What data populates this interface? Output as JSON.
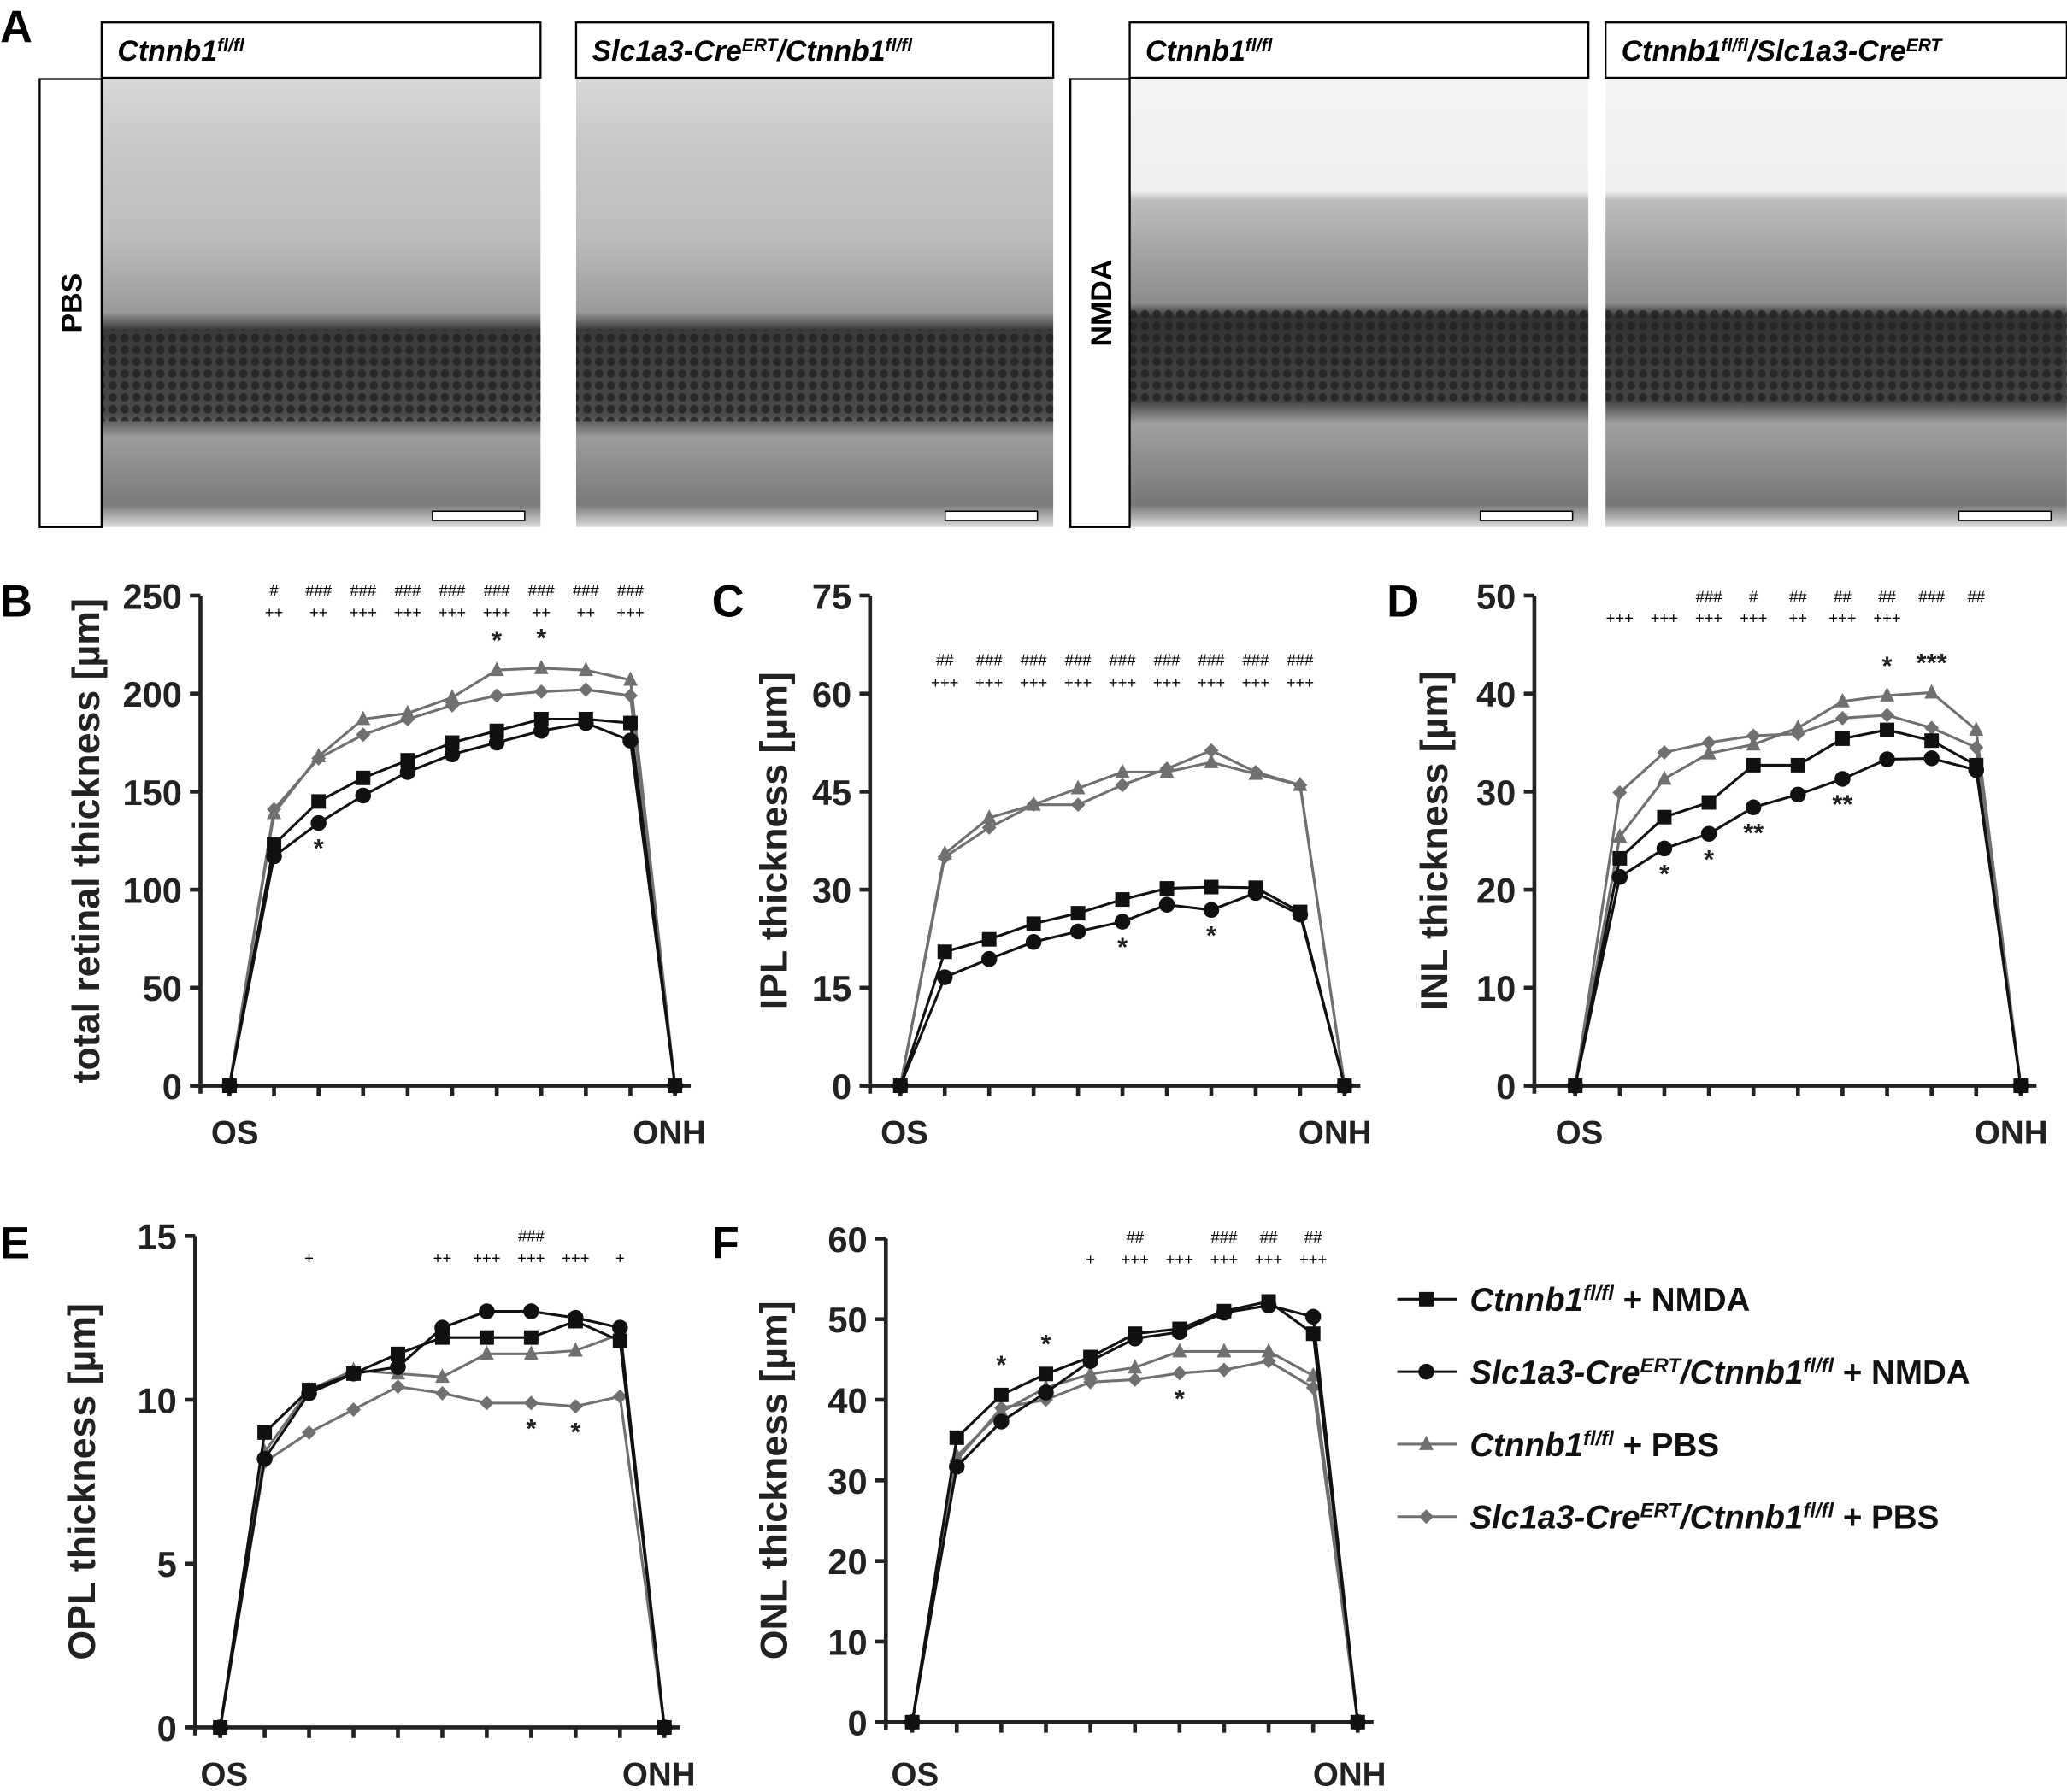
{
  "panel_letters": [
    "A",
    "B",
    "C",
    "D",
    "E",
    "F"
  ],
  "micrographs": {
    "headers": [
      [
        {
          "t": "Ctnnb1"
        },
        {
          "sup": "fl/fl"
        }
      ],
      [
        {
          "t": "Slc1a3-Cre"
        },
        {
          "sup": "ERT"
        },
        {
          "t": "/Ctnnb1"
        },
        {
          "sup": "fl/fl"
        }
      ],
      [
        {
          "t": "Ctnnb1"
        },
        {
          "sup": "fl/fl"
        }
      ],
      [
        {
          "t": "Ctnnb1"
        },
        {
          "sup": "fl/fl"
        },
        {
          "t": "/Slc1a3-Cre"
        },
        {
          "sup": "ERT"
        }
      ]
    ],
    "row_labels": [
      "PBS",
      "NMDA"
    ]
  },
  "legend": [
    {
      "marker": "square",
      "color": "#111111",
      "label": [
        {
          "t": "Ctnnb1"
        },
        {
          "sup": "fl/fl"
        },
        {
          "t": " + NMDA",
          "plain": true
        }
      ]
    },
    {
      "marker": "circle",
      "color": "#111111",
      "label": [
        {
          "t": "Slc1a3-Cre"
        },
        {
          "sup": "ERT"
        },
        {
          "t": "/Ctnnb1"
        },
        {
          "sup": "fl/fl"
        },
        {
          "t": " + NMDA",
          "plain": true
        }
      ]
    },
    {
      "marker": "triangle",
      "color": "#707070",
      "label": [
        {
          "t": "Ctnnb1"
        },
        {
          "sup": "fl/fl"
        },
        {
          "t": " + PBS",
          "plain": true
        }
      ]
    },
    {
      "marker": "diamond",
      "color": "#707070",
      "label": [
        {
          "t": "Slc1a3-Cre"
        },
        {
          "sup": "ERT"
        },
        {
          "t": "/Ctnnb1"
        },
        {
          "sup": "fl/fl"
        },
        {
          "t": " + PBS",
          "plain": true
        }
      ]
    }
  ],
  "chart_data": [
    {
      "id": "B",
      "type": "line",
      "ylabel": "total retinal thickness [µm]",
      "ylim": [
        0,
        250
      ],
      "yticks": [
        0,
        50,
        100,
        150,
        200,
        250
      ],
      "x": [
        0,
        1,
        2,
        3,
        4,
        5,
        6,
        7,
        8,
        9,
        10
      ],
      "xticklabels": {
        "0": "OS",
        "10": "ONH"
      },
      "series": [
        {
          "marker": "square",
          "color": "#111111",
          "values": [
            0,
            123,
            145,
            157,
            166,
            175,
            181,
            187,
            187,
            185,
            0
          ]
        },
        {
          "marker": "circle",
          "color": "#111111",
          "values": [
            0,
            117,
            134,
            148,
            160,
            169,
            175,
            181,
            185,
            176,
            0
          ]
        },
        {
          "marker": "triangle",
          "color": "#707070",
          "values": [
            0,
            139,
            168,
            187,
            190,
            198,
            212,
            213,
            212,
            207,
            0
          ]
        },
        {
          "marker": "diamond",
          "color": "#707070",
          "values": [
            0,
            141,
            167,
            179,
            187,
            194,
            199,
            201,
            202,
            199,
            0
          ]
        }
      ],
      "sig_rows": [
        [
          "#",
          "###",
          "###",
          "###",
          "###",
          "###",
          "###",
          "###",
          "###"
        ],
        [
          "++",
          "++",
          "+++",
          "+++",
          "+++",
          "+++",
          "++",
          "++",
          "+++"
        ]
      ],
      "stars": [
        {
          "x": 2,
          "text": "*",
          "series": 1,
          "pos": "below",
          "color": "#111111"
        },
        {
          "x": 6,
          "text": "*",
          "series": 2,
          "pos": "above",
          "color": "#707070"
        },
        {
          "x": 7,
          "text": "*",
          "series": 2,
          "pos": "above",
          "color": "#707070"
        }
      ]
    },
    {
      "id": "C",
      "type": "line",
      "ylabel": "IPL thickness [µm]",
      "ylim": [
        0,
        75
      ],
      "yticks": [
        0,
        15,
        30,
        45,
        60,
        75
      ],
      "x": [
        0,
        1,
        2,
        3,
        4,
        5,
        6,
        7,
        8,
        9,
        10
      ],
      "xticklabels": {
        "0": "OS",
        "10": "ONH"
      },
      "series": [
        {
          "marker": "square",
          "color": "#111111",
          "values": [
            0,
            20.5,
            22.4,
            24.8,
            26.4,
            28.5,
            30.2,
            30.4,
            30.3,
            26.6,
            0
          ]
        },
        {
          "marker": "circle",
          "color": "#111111",
          "values": [
            0,
            16.6,
            19.4,
            22,
            23.6,
            25.1,
            27.7,
            26.9,
            29.5,
            26.2,
            0
          ]
        },
        {
          "marker": "triangle",
          "color": "#707070",
          "values": [
            0,
            35.5,
            41,
            43,
            45.5,
            48,
            48,
            49.5,
            47.7,
            46,
            0
          ]
        },
        {
          "marker": "diamond",
          "color": "#707070",
          "values": [
            0,
            35,
            39.5,
            43,
            43,
            46,
            48.5,
            51.3,
            48,
            46,
            0
          ]
        }
      ],
      "sig_rows": [
        [
          "##",
          "###",
          "###",
          "###",
          "###",
          "###",
          "###",
          "###",
          "###"
        ],
        [
          "+++",
          "+++",
          "+++",
          "+++",
          "+++",
          "+++",
          "+++",
          "+++",
          "+++"
        ]
      ],
      "stars": [
        {
          "x": 5,
          "text": "*",
          "series": 1,
          "pos": "below",
          "color": "#111111"
        },
        {
          "x": 7,
          "text": "*",
          "series": 1,
          "pos": "below",
          "color": "#111111"
        }
      ]
    },
    {
      "id": "D",
      "type": "line",
      "ylabel": "INL thickness [µm]",
      "ylim": [
        0,
        50
      ],
      "yticks": [
        0,
        10,
        20,
        30,
        40,
        50
      ],
      "x": [
        0,
        1,
        2,
        3,
        4,
        5,
        6,
        7,
        8,
        9,
        10
      ],
      "xticklabels": {
        "0": "OS",
        "10": "ONH"
      },
      "series": [
        {
          "marker": "square",
          "color": "#111111",
          "values": [
            0,
            23.2,
            27.4,
            28.9,
            32.7,
            32.7,
            35.4,
            36.3,
            35.2,
            32.7,
            0
          ]
        },
        {
          "marker": "circle",
          "color": "#111111",
          "values": [
            0,
            21.3,
            24.2,
            25.7,
            28.4,
            29.7,
            31.3,
            33.3,
            33.4,
            32.2,
            0
          ]
        },
        {
          "marker": "triangle",
          "color": "#707070",
          "values": [
            0,
            25.4,
            31.3,
            33.9,
            34.8,
            36.5,
            39.2,
            39.8,
            40.1,
            36.3,
            0
          ]
        },
        {
          "marker": "diamond",
          "color": "#707070",
          "values": [
            0,
            29.9,
            34,
            35,
            35.7,
            35.9,
            37.5,
            37.8,
            36.5,
            34.5,
            0
          ]
        }
      ],
      "sig_rows": [
        [
          "",
          "",
          "###",
          "#",
          "##",
          "##",
          "##",
          "###",
          "##"
        ],
        [
          "+++",
          "+++",
          "+++",
          "+++",
          "++",
          "+++",
          "+++",
          "",
          ""
        ]
      ],
      "stars": [
        {
          "x": 2,
          "text": "*",
          "series": 1,
          "pos": "below",
          "color": "#111111"
        },
        {
          "x": 3,
          "text": "*",
          "series": 1,
          "pos": "below",
          "color": "#111111"
        },
        {
          "x": 4,
          "text": "**",
          "series": 1,
          "pos": "below",
          "color": "#111111"
        },
        {
          "x": 6,
          "text": "**",
          "series": 1,
          "pos": "below",
          "color": "#111111"
        },
        {
          "x": 7,
          "text": "*",
          "series": 2,
          "pos": "above",
          "color": "#707070"
        },
        {
          "x": 8,
          "text": "***",
          "series": 2,
          "pos": "above",
          "color": "#707070"
        }
      ]
    },
    {
      "id": "E",
      "type": "line",
      "ylabel": "OPL thickness [µm]",
      "ylim": [
        0,
        15
      ],
      "yticks": [
        0,
        5,
        10,
        15
      ],
      "x": [
        0,
        1,
        2,
        3,
        4,
        5,
        6,
        7,
        8,
        9,
        10
      ],
      "xticklabels": {
        "0": "OS",
        "10": "ONH"
      },
      "series": [
        {
          "marker": "square",
          "color": "#111111",
          "values": [
            0,
            9.0,
            10.3,
            10.8,
            11.4,
            11.9,
            11.9,
            11.9,
            12.4,
            11.8,
            0
          ]
        },
        {
          "marker": "circle",
          "color": "#111111",
          "values": [
            0,
            8.2,
            10.2,
            10.8,
            11.0,
            12.2,
            12.7,
            12.7,
            12.5,
            12.2,
            0
          ]
        },
        {
          "marker": "triangle",
          "color": "#707070",
          "values": [
            0,
            8.4,
            10.3,
            10.9,
            10.8,
            10.7,
            11.4,
            11.4,
            11.5,
            12.0,
            0
          ]
        },
        {
          "marker": "diamond",
          "color": "#707070",
          "values": [
            0,
            8.1,
            9.0,
            9.7,
            10.4,
            10.2,
            9.9,
            9.9,
            9.8,
            10.1,
            0
          ]
        }
      ],
      "sig_rows": [
        [
          "",
          "",
          "",
          "",
          "",
          "",
          "###",
          "",
          ""
        ],
        [
          "",
          "+",
          "",
          "",
          "++",
          "+++",
          "+++",
          "+++",
          "+"
        ]
      ],
      "stars": [
        {
          "x": 7,
          "text": "*",
          "series": 3,
          "pos": "below",
          "color": "#707070"
        },
        {
          "x": 8,
          "text": "*",
          "series": 3,
          "pos": "below",
          "color": "#707070"
        }
      ]
    },
    {
      "id": "F",
      "type": "line",
      "ylabel": "ONL thickness [µm]",
      "ylim": [
        0,
        60
      ],
      "yticks": [
        0,
        10,
        20,
        30,
        40,
        50,
        60
      ],
      "x": [
        0,
        1,
        2,
        3,
        4,
        5,
        6,
        7,
        8,
        9,
        10
      ],
      "xticklabels": {
        "0": "OS",
        "10": "ONH"
      },
      "series": [
        {
          "marker": "square",
          "color": "#111111",
          "values": [
            0,
            35.3,
            40.6,
            43.2,
            45.3,
            48.2,
            48.8,
            51,
            52.2,
            48.2,
            0
          ]
        },
        {
          "marker": "circle",
          "color": "#111111",
          "values": [
            0,
            31.7,
            37.3,
            40.9,
            44.8,
            47.6,
            48.4,
            50.8,
            51.7,
            50.3,
            0
          ]
        },
        {
          "marker": "triangle",
          "color": "#707070",
          "values": [
            0,
            33,
            38.5,
            41.5,
            43.2,
            44,
            46,
            46,
            46,
            43,
            0
          ]
        },
        {
          "marker": "diamond",
          "color": "#707070",
          "values": [
            0,
            32.5,
            39,
            40,
            42.2,
            42.5,
            43.3,
            43.7,
            44.8,
            41.5,
            0
          ]
        }
      ],
      "sig_rows": [
        [
          "",
          "",
          "",
          "",
          "##",
          "",
          "###",
          "##",
          "##"
        ],
        [
          "",
          "",
          "",
          "+",
          "+++",
          "+++",
          "+++",
          "+++",
          "+++"
        ]
      ],
      "stars": [
        {
          "x": 2,
          "text": "*",
          "series": 0,
          "pos": "above",
          "color": "#111111"
        },
        {
          "x": 3,
          "text": "*",
          "series": 0,
          "pos": "above",
          "color": "#111111"
        },
        {
          "x": 6,
          "text": "*",
          "series": 3,
          "pos": "below",
          "color": "#707070"
        }
      ]
    }
  ]
}
